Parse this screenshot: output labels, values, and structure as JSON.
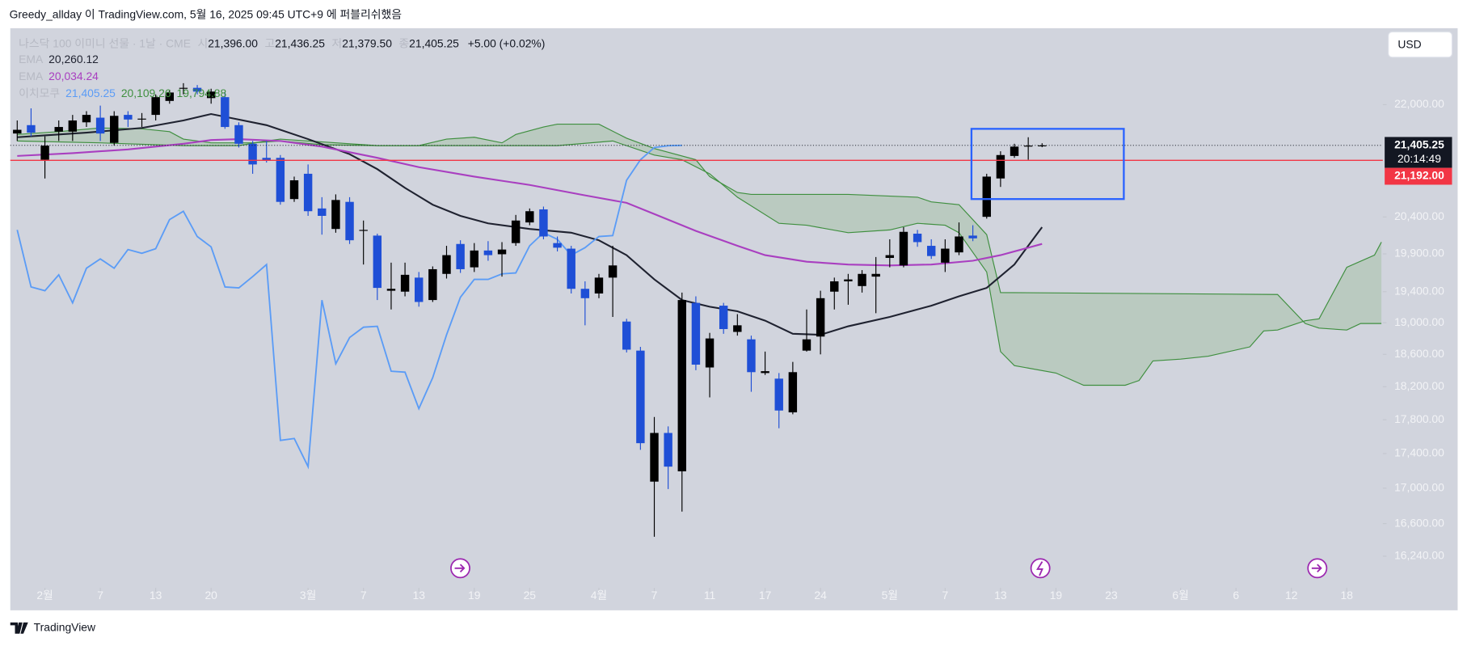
{
  "header": {
    "publish": "Greedy_allday 이 TradingView.com, 5월 16, 2025 09:45 UTC+9 에 퍼블리쉬했음"
  },
  "footer": {
    "brand": "TradingView"
  },
  "chart_data": {
    "type": "candlestick",
    "symbol": "나스닥 100 이미니 선물 · 1날 · CME",
    "ohlc_legend": {
      "o_label": "시",
      "o": "21,396.00",
      "h_label": "고",
      "h": "21,436.25",
      "l_label": "저",
      "l": "21,379.50",
      "c_label": "종",
      "c": "21,405.25",
      "change": "+5.00 (+0.02%)"
    },
    "currency": "USD",
    "up_color": "#000000",
    "down_color": "#1f4fd6",
    "x": [
      -2,
      -1,
      0,
      1,
      2,
      3,
      4,
      5,
      6,
      7,
      8,
      9,
      10,
      11,
      12,
      13,
      14,
      15,
      16,
      17,
      18,
      19,
      20,
      21,
      22,
      23,
      24,
      25,
      26,
      27,
      28,
      29,
      30,
      31,
      32,
      33,
      34,
      35,
      36,
      37,
      38,
      39,
      40,
      41,
      42,
      43,
      44,
      45,
      46,
      47,
      48,
      49,
      50,
      51,
      52,
      53,
      54,
      55,
      56,
      57,
      58,
      59,
      60,
      61,
      62,
      63,
      64,
      65,
      66,
      67,
      68,
      69,
      70,
      71,
      72
    ],
    "open": [
      21577,
      21699,
      21200,
      21604,
      21604,
      21740,
      21808,
      21442,
      21849,
      21781,
      21849,
      22055,
      22236,
      22250,
      22097,
      22111,
      21699,
      21429,
      21227,
      21227,
      20647,
      21001,
      20517,
      20236,
      20608,
      20210,
      20146,
      19413,
      19401,
      19585,
      19292,
      19634,
      20033,
      19721,
      19945,
      19895,
      20045,
      20325,
      20504,
      20045,
      19970,
      19438,
      19377,
      19585,
      19015,
      18647,
      17075,
      17643,
      17194,
      19255,
      18437,
      19219,
      18883,
      18789,
      18368,
      18299,
      17889,
      18647,
      18824,
      19401,
      19536,
      19474,
      19598,
      19846,
      19746,
      20172,
      20008,
      19783,
      19920,
      20146,
      20402,
      20935,
      21254,
      21388,
      21396
    ],
    "high": [
      21767,
      21945,
      21536,
      21767,
      21849,
      21903,
      21986,
      21903,
      21903,
      21876,
      22152,
      22222,
      22320,
      22292,
      22236,
      22180,
      21740,
      21469,
      21469,
      21267,
      20961,
      21133,
      20673,
      20712,
      20673,
      20351,
      20172,
      19783,
      19783,
      19659,
      19733,
      20008,
      20083,
      20045,
      20071,
      20058,
      20428,
      20517,
      20543,
      20134,
      20008,
      19536,
      19634,
      20008,
      19050,
      18694,
      17833,
      17721,
      19389,
      19340,
      18871,
      19255,
      19110,
      18836,
      18635,
      18368,
      18506,
      19170,
      19413,
      19585,
      19634,
      19684,
      19858,
      20096,
      20261,
      20223,
      20096,
      20096,
      20325,
      20287,
      21001,
      21321,
      21429,
      21523,
      21436.25
    ],
    "low": [
      21469,
      21536,
      20935,
      21469,
      21469,
      21672,
      21469,
      21402,
      21672,
      21672,
      21767,
      22014,
      22152,
      22152,
      22014,
      21645,
      21375,
      21001,
      21160,
      20569,
      20608,
      20415,
      20159,
      20185,
      20033,
      19758,
      19292,
      19170,
      19340,
      19206,
      19267,
      19573,
      19647,
      19659,
      19808,
      19598,
      20008,
      20287,
      20096,
      19933,
      19377,
      18967,
      19316,
      19074,
      18624,
      17444,
      16454,
      16990,
      16735,
      18403,
      18070,
      18859,
      18836,
      18138,
      18345,
      17699,
      17866,
      18635,
      18600,
      19170,
      19231,
      19389,
      19122,
      19721,
      19721,
      19995,
      19833,
      19659,
      19883,
      20071,
      20377,
      20816,
      21227,
      21200,
      21379.5
    ],
    "close": [
      21631,
      21590,
      21402,
      21672,
      21767,
      21849,
      21577,
      21835,
      21781,
      21794,
      22111,
      22180,
      22250,
      22194,
      22194,
      21672,
      21429,
      21133,
      21187,
      20608,
      20909,
      20479,
      20415,
      20634,
      20083,
      20223,
      19450,
      19438,
      19622,
      19267,
      19696,
      19883,
      19696,
      19945,
      19883,
      19958,
      20351,
      20479,
      20134,
      19983,
      19438,
      19316,
      19585,
      19746,
      18659,
      17522,
      17643,
      17248,
      19292,
      18472,
      18800,
      18919,
      18967,
      18379,
      18391,
      17911,
      18379,
      18789,
      19316,
      19536,
      19561,
      19634,
      19634,
      19883,
      20197,
      20058,
      19871,
      19970,
      20134,
      20109,
      20961,
      21267,
      21388,
      21402,
      21405.25
    ],
    "series": [
      {
        "name": "EMA",
        "color": "#1f2230",
        "value_label": "20,260.12",
        "x": [
          -2,
          0,
          3,
          7,
          10,
          12,
          14,
          16,
          19,
          22,
          24,
          26,
          28,
          30,
          32,
          35,
          38,
          40,
          42,
          44,
          46,
          48,
          50,
          52,
          54,
          56,
          58,
          61,
          64,
          66,
          68,
          70,
          71,
          72
        ],
        "values": [
          21523,
          21550,
          21590,
          21658,
          21767,
          21862,
          21781,
          21699,
          21496,
          21280,
          21067,
          20803,
          20569,
          20415,
          20313,
          20236,
          20185,
          20083,
          19883,
          19561,
          19292,
          19206,
          19146,
          19026,
          18859,
          18847,
          18955,
          19074,
          19219,
          19340,
          19450,
          19758,
          20008,
          20260.12
        ]
      },
      {
        "name": "EMA",
        "color": "#a93fc0",
        "value_label": "20,034.24",
        "x": [
          -2,
          2,
          6,
          10,
          12,
          14,
          17,
          20,
          24,
          27,
          31,
          35,
          39,
          42,
          44,
          47,
          50,
          52,
          55,
          58,
          61,
          64,
          67,
          69,
          72
        ],
        "values": [
          21254,
          21294,
          21348,
          21429,
          21482,
          21496,
          21469,
          21388,
          21227,
          21094,
          20961,
          20843,
          20699,
          20595,
          20440,
          20210,
          20008,
          19883,
          19796,
          19758,
          19746,
          19758,
          19808,
          19883,
          20034.24
        ]
      },
      {
        "name": "이치모쿠",
        "color": "#5b9cf6",
        "value_label": "21,405.25",
        "x": [
          -2,
          -1,
          0,
          1,
          2,
          3,
          4,
          5,
          6,
          7,
          8,
          9,
          10,
          11,
          12,
          13,
          14,
          15,
          16,
          17,
          18,
          19,
          20,
          21,
          22,
          23,
          24,
          25,
          26,
          27,
          28,
          29,
          30,
          31,
          32,
          33,
          34,
          35,
          36,
          37,
          38,
          39,
          40,
          41,
          42,
          43,
          44,
          45,
          46
        ],
        "values": [
          20223,
          19462,
          19413,
          19622,
          19255,
          19709,
          19833,
          19709,
          19958,
          19908,
          19970,
          20364,
          20479,
          20134,
          19995,
          19462,
          19450,
          19598,
          19758,
          17555,
          17577,
          17248,
          19292,
          18483,
          18812,
          18943,
          18955,
          18391,
          18379,
          17934,
          18311,
          18847,
          19328,
          19561,
          19561,
          19634,
          19647,
          20008,
          20185,
          20096,
          19883,
          19983,
          20134,
          20146,
          20909,
          21200,
          21375,
          21402,
          21405.25
        ]
      }
    ],
    "cloud": {
      "color": "#3f8f3f",
      "fill": "#9ebf9e",
      "labels": [
        "20,109.26",
        "19,794.88"
      ],
      "lines": [
        {
          "x": [
            -2,
            1,
            4,
            7,
            9,
            10,
            12,
            15,
            17,
            20,
            24,
            27,
            29,
            31,
            33,
            34,
            36,
            37,
            40,
            42,
            44,
            47,
            48,
            50,
            51,
            58,
            63,
            64,
            66,
            68,
            69,
            89,
            91,
            92,
            94,
            95,
            96.5
          ],
          "values": [
            21563,
            21604,
            21658,
            21645,
            21604,
            21496,
            21442,
            21442,
            21469,
            21415,
            21402,
            21402,
            21496,
            21523,
            21442,
            21563,
            21672,
            21713,
            21713,
            21509,
            21361,
            21200,
            20961,
            20738,
            20712,
            20712,
            20673,
            20608,
            20569,
            20159,
            19389,
            19364,
            18990,
            18931,
            18907,
            18990,
            18990
          ]
        },
        {
          "x": [
            -2,
            4,
            10,
            14,
            16,
            17,
            24,
            37,
            41,
            44,
            46,
            48,
            50,
            53,
            55,
            58,
            61,
            63,
            65,
            66,
            68,
            69,
            70,
            73,
            75,
            78,
            79,
            80,
            82,
            84,
            87,
            88,
            89,
            91,
            92,
            94,
            96,
            96.5
          ],
          "values": [
            21469,
            21442,
            21402,
            21402,
            21469,
            21496,
            21402,
            21402,
            21469,
            21267,
            21200,
            21001,
            20673,
            20313,
            20287,
            20185,
            20223,
            20313,
            20287,
            20185,
            19659,
            18635,
            18460,
            18368,
            18218,
            18218,
            18276,
            18518,
            18541,
            18577,
            18694,
            18895,
            18907,
            19026,
            19050,
            19721,
            19883,
            20058
          ]
        }
      ]
    },
    "price_lines": [
      {
        "value": 21405.25,
        "label": "21,405.25",
        "countdown": "20:14:49",
        "color": "#131722",
        "style": "dotted"
      },
      {
        "value": 21192,
        "label": "21,192.00",
        "color": "#f23645",
        "style": "solid"
      }
    ],
    "rectangle": {
      "x": [
        66.9,
        77.9
      ],
      "y": [
        20647,
        21645
      ],
      "color": "#2962ff"
    },
    "xlim": [
      -2.5,
      96.6
    ],
    "xticks": [
      {
        "value": 0,
        "label": "2월"
      },
      {
        "value": 4,
        "label": "7"
      },
      {
        "value": 8,
        "label": "13"
      },
      {
        "value": 12,
        "label": "20"
      },
      {
        "value": 19,
        "label": "3월"
      },
      {
        "value": 23,
        "label": "7"
      },
      {
        "value": 27,
        "label": "13"
      },
      {
        "value": 31,
        "label": "19"
      },
      {
        "value": 35,
        "label": "25"
      },
      {
        "value": 40,
        "label": "4월"
      },
      {
        "value": 44,
        "label": "7"
      },
      {
        "value": 48,
        "label": "11"
      },
      {
        "value": 52,
        "label": "17"
      },
      {
        "value": 56,
        "label": "24"
      },
      {
        "value": 61,
        "label": "5월"
      },
      {
        "value": 65,
        "label": "7"
      },
      {
        "value": 69,
        "label": "13"
      },
      {
        "value": 73,
        "label": "19"
      },
      {
        "value": 77,
        "label": "23"
      },
      {
        "value": 82,
        "label": "6월"
      },
      {
        "value": 86,
        "label": "6"
      },
      {
        "value": 90,
        "label": "12"
      },
      {
        "value": 94,
        "label": "18"
      }
    ],
    "ylim": [
      15660,
      23160
    ],
    "log_scale": true,
    "yticks": [
      {
        "value": 22000,
        "label": "22,000.00"
      },
      {
        "value": 20400,
        "label": "20,400.00"
      },
      {
        "value": 19900,
        "label": "19,900.00"
      },
      {
        "value": 19400,
        "label": "19,400.00"
      },
      {
        "value": 19000,
        "label": "19,000.00"
      },
      {
        "value": 18600,
        "label": "18,600.00"
      },
      {
        "value": 18200,
        "label": "18,200.00"
      },
      {
        "value": 17800,
        "label": "17,800.00"
      },
      {
        "value": 17400,
        "label": "17,400.00"
      },
      {
        "value": 17000,
        "label": "17,000.00"
      },
      {
        "value": 16600,
        "label": "16,600.00"
      },
      {
        "value": 16240,
        "label": "16,240.00"
      }
    ]
  }
}
